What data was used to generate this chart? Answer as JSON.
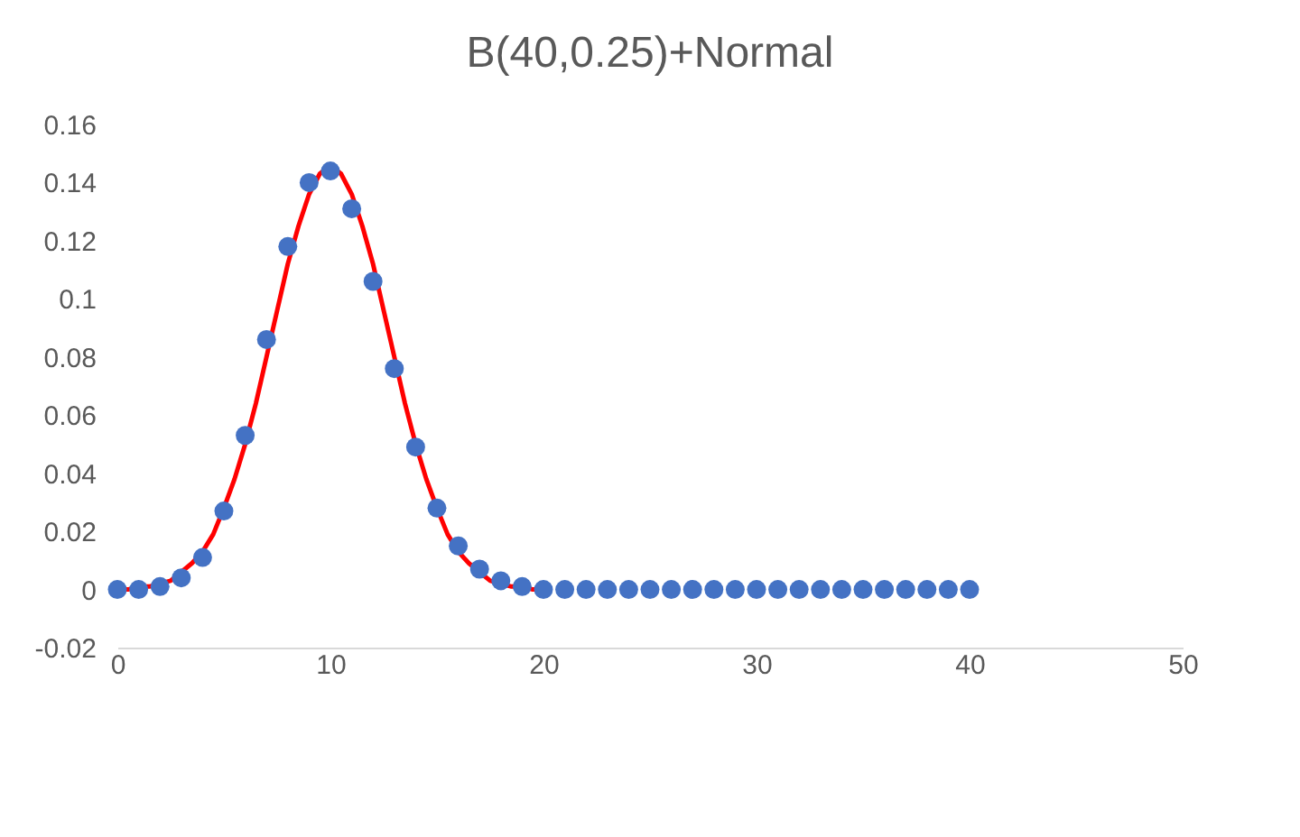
{
  "chart_data": {
    "type": "scatter",
    "title": "B(40,0.25)+Normal",
    "xlim": [
      0,
      50
    ],
    "xticks": [
      0,
      10,
      20,
      30,
      40,
      50
    ],
    "ylim": [
      -0.02,
      0.16
    ],
    "yticks": [
      -0.02,
      0,
      0.02,
      0.04,
      0.06,
      0.08,
      0.1,
      0.12,
      0.14,
      0.16
    ],
    "grid": false,
    "series": [
      {
        "type": "line",
        "color": "#ff0000",
        "marker": "none",
        "line_style": "solid",
        "x": [
          0,
          0.5,
          1,
          1.5,
          2,
          2.5,
          3,
          3.5,
          4,
          4.5,
          5,
          5.5,
          6,
          6.5,
          7,
          7.5,
          8,
          8.5,
          9,
          9.5,
          10,
          10.5,
          11,
          11.5,
          12,
          12.5,
          13,
          13.5,
          14,
          14.5,
          15,
          15.5,
          16,
          16.5,
          17,
          17.5,
          18,
          18.5,
          19,
          19.5,
          20
        ],
        "values": [
          0.0,
          0.0,
          0.001,
          0.001,
          0.002,
          0.003,
          0.006,
          0.009,
          0.013,
          0.019,
          0.028,
          0.038,
          0.05,
          0.064,
          0.08,
          0.096,
          0.112,
          0.125,
          0.136,
          0.143,
          0.146,
          0.143,
          0.136,
          0.125,
          0.112,
          0.096,
          0.08,
          0.064,
          0.05,
          0.038,
          0.028,
          0.019,
          0.013,
          0.009,
          0.006,
          0.003,
          0.002,
          0.001,
          0.001,
          0.0,
          0.0
        ]
      },
      {
        "color": "#4472c4",
        "marker": "circle",
        "x": [
          0,
          1,
          2,
          3,
          4,
          5,
          6,
          7,
          8,
          9,
          10,
          11,
          12,
          13,
          14,
          15,
          16,
          17,
          18,
          19,
          20,
          21,
          22,
          23,
          24,
          25,
          26,
          27,
          28,
          29,
          30,
          31,
          32,
          33,
          34,
          35,
          36,
          37,
          38,
          39,
          40
        ],
        "values": [
          0.0,
          0.0,
          0.001,
          0.004,
          0.011,
          0.027,
          0.053,
          0.086,
          0.118,
          0.14,
          0.144,
          0.131,
          0.106,
          0.076,
          0.049,
          0.028,
          0.015,
          0.007,
          0.003,
          0.001,
          0.0,
          0.0,
          0.0,
          0.0,
          0.0,
          0.0,
          0.0,
          0.0,
          0.0,
          0.0,
          0.0,
          0.0,
          0.0,
          0.0,
          0.0,
          0.0,
          0.0,
          0.0,
          0.0,
          0.0,
          0.0
        ]
      }
    ]
  }
}
